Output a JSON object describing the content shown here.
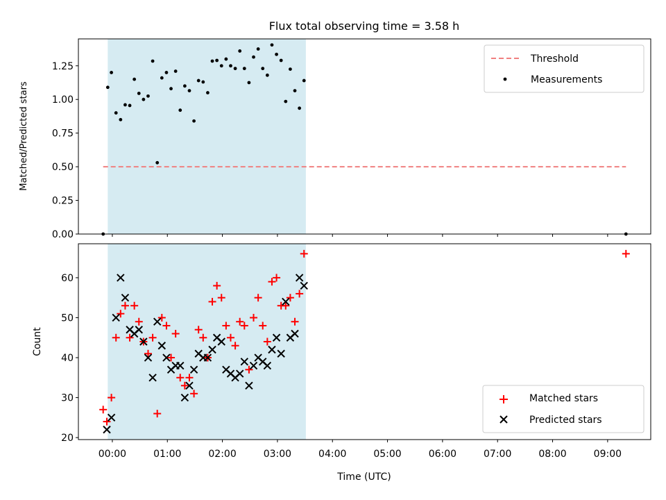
{
  "chart_data": [
    {
      "type": "scatter",
      "title": "Flux total observing time = 3.58 h",
      "ylabel": "Matched/Predicted stars",
      "xlabel": "",
      "xlim": [
        "23:23",
        "09:47"
      ],
      "ylim": [
        0,
        1.45
      ],
      "x_tick_labels": [
        "00:00",
        "01:00",
        "02:00",
        "03:00",
        "04:00",
        "05:00",
        "06:00",
        "07:00",
        "08:00",
        "09:00"
      ],
      "y_tick_labels": [
        "0.00",
        "0.25",
        "0.50",
        "0.75",
        "1.00",
        "1.25"
      ],
      "observing_window": [
        "23:55",
        "03:31"
      ],
      "legend_position": "upper right",
      "threshold": {
        "name": "Threshold",
        "y": 0.5,
        "x": [
          "23:50",
          "09:20"
        ],
        "color": "#f08080"
      },
      "series": [
        {
          "name": "Measurements",
          "color": "#000000",
          "points": [
            [
              "23:50",
              0.0
            ],
            [
              "23:55",
              1.09
            ],
            [
              "23:59",
              1.2
            ],
            [
              "00:04",
              0.9
            ],
            [
              "00:09",
              0.85
            ],
            [
              "00:14",
              0.96
            ],
            [
              "00:19",
              0.955
            ],
            [
              "00:24",
              1.15
            ],
            [
              "00:29",
              1.045
            ],
            [
              "00:34",
              1.0
            ],
            [
              "00:39",
              1.025
            ],
            [
              "00:44",
              1.285
            ],
            [
              "00:49",
              0.53
            ],
            [
              "00:54",
              1.16
            ],
            [
              "00:59",
              1.2
            ],
            [
              "01:04",
              1.08
            ],
            [
              "01:09",
              1.21
            ],
            [
              "01:14",
              0.92
            ],
            [
              "01:19",
              1.1
            ],
            [
              "01:24",
              1.065
            ],
            [
              "01:29",
              0.84
            ],
            [
              "01:34",
              1.14
            ],
            [
              "01:39",
              1.13
            ],
            [
              "01:44",
              1.05
            ],
            [
              "01:49",
              1.285
            ],
            [
              "01:54",
              1.29
            ],
            [
              "01:59",
              1.25
            ],
            [
              "02:04",
              1.3
            ],
            [
              "02:09",
              1.25
            ],
            [
              "02:14",
              1.23
            ],
            [
              "02:19",
              1.36
            ],
            [
              "02:24",
              1.23
            ],
            [
              "02:29",
              1.125
            ],
            [
              "02:34",
              1.315
            ],
            [
              "02:39",
              1.375
            ],
            [
              "02:44",
              1.23
            ],
            [
              "02:49",
              1.18
            ],
            [
              "02:54",
              1.405
            ],
            [
              "02:59",
              1.335
            ],
            [
              "03:04",
              1.29
            ],
            [
              "03:09",
              0.985
            ],
            [
              "03:14",
              1.225
            ],
            [
              "03:19",
              1.065
            ],
            [
              "03:24",
              0.935
            ],
            [
              "03:29",
              1.14
            ],
            [
              "09:20",
              0.0
            ]
          ]
        }
      ]
    },
    {
      "type": "scatter",
      "title": "",
      "ylabel": "Count",
      "xlabel": "Time (UTC)",
      "xlim": [
        "23:23",
        "09:47"
      ],
      "ylim": [
        19.5,
        68.5
      ],
      "x_tick_labels": [
        "00:00",
        "01:00",
        "02:00",
        "03:00",
        "04:00",
        "05:00",
        "06:00",
        "07:00",
        "08:00",
        "09:00"
      ],
      "y_tick_labels": [
        "20",
        "30",
        "40",
        "50",
        "60"
      ],
      "observing_window": [
        "23:55",
        "03:31"
      ],
      "legend_position": "lower right",
      "series": [
        {
          "name": "Matched stars",
          "marker": "plus",
          "color": "#ff0000",
          "points": [
            [
              "23:50",
              27
            ],
            [
              "23:54",
              24
            ],
            [
              "23:59",
              30
            ],
            [
              "00:04",
              45
            ],
            [
              "00:09",
              51
            ],
            [
              "00:14",
              53
            ],
            [
              "00:19",
              45
            ],
            [
              "00:24",
              53
            ],
            [
              "00:29",
              49
            ],
            [
              "00:34",
              44
            ],
            [
              "00:39",
              41
            ],
            [
              "00:44",
              45
            ],
            [
              "00:49",
              26
            ],
            [
              "00:54",
              50
            ],
            [
              "00:59",
              48
            ],
            [
              "01:04",
              40
            ],
            [
              "01:09",
              46
            ],
            [
              "01:14",
              35
            ],
            [
              "01:19",
              33
            ],
            [
              "01:24",
              35
            ],
            [
              "01:29",
              31
            ],
            [
              "01:34",
              47
            ],
            [
              "01:39",
              45
            ],
            [
              "01:44",
              40
            ],
            [
              "01:49",
              54
            ],
            [
              "01:54",
              58
            ],
            [
              "01:59",
              55
            ],
            [
              "02:04",
              48
            ],
            [
              "02:09",
              45
            ],
            [
              "02:14",
              43
            ],
            [
              "02:19",
              49
            ],
            [
              "02:24",
              48
            ],
            [
              "02:29",
              37
            ],
            [
              "02:34",
              50
            ],
            [
              "02:39",
              55
            ],
            [
              "02:44",
              48
            ],
            [
              "02:49",
              44
            ],
            [
              "02:54",
              59
            ],
            [
              "02:59",
              60
            ],
            [
              "03:04",
              53
            ],
            [
              "03:09",
              53
            ],
            [
              "03:14",
              55
            ],
            [
              "03:19",
              49
            ],
            [
              "03:24",
              56
            ],
            [
              "03:29",
              66
            ],
            [
              "09:20",
              66
            ]
          ]
        },
        {
          "name": "Predicted stars",
          "marker": "x",
          "color": "#000000",
          "points": [
            [
              "23:54",
              22
            ],
            [
              "23:59",
              25
            ],
            [
              "00:04",
              50
            ],
            [
              "00:09",
              60
            ],
            [
              "00:14",
              55
            ],
            [
              "00:19",
              47
            ],
            [
              "00:24",
              46
            ],
            [
              "00:29",
              47
            ],
            [
              "00:34",
              44
            ],
            [
              "00:39",
              40
            ],
            [
              "00:44",
              35
            ],
            [
              "00:49",
              49
            ],
            [
              "00:54",
              43
            ],
            [
              "00:59",
              40
            ],
            [
              "01:04",
              37
            ],
            [
              "01:09",
              38
            ],
            [
              "01:14",
              38
            ],
            [
              "01:19",
              30
            ],
            [
              "01:24",
              33
            ],
            [
              "01:29",
              37
            ],
            [
              "01:34",
              41
            ],
            [
              "01:39",
              40
            ],
            [
              "01:44",
              40
            ],
            [
              "01:49",
              42
            ],
            [
              "01:54",
              45
            ],
            [
              "01:59",
              44
            ],
            [
              "02:04",
              37
            ],
            [
              "02:09",
              36
            ],
            [
              "02:14",
              35
            ],
            [
              "02:19",
              36
            ],
            [
              "02:24",
              39
            ],
            [
              "02:29",
              33
            ],
            [
              "02:34",
              38
            ],
            [
              "02:39",
              40
            ],
            [
              "02:44",
              39
            ],
            [
              "02:49",
              38
            ],
            [
              "02:54",
              42
            ],
            [
              "02:59",
              45
            ],
            [
              "03:04",
              41
            ],
            [
              "03:09",
              54
            ],
            [
              "03:14",
              45
            ],
            [
              "03:19",
              46
            ],
            [
              "03:24",
              60
            ],
            [
              "03:29",
              58
            ]
          ]
        }
      ]
    }
  ]
}
